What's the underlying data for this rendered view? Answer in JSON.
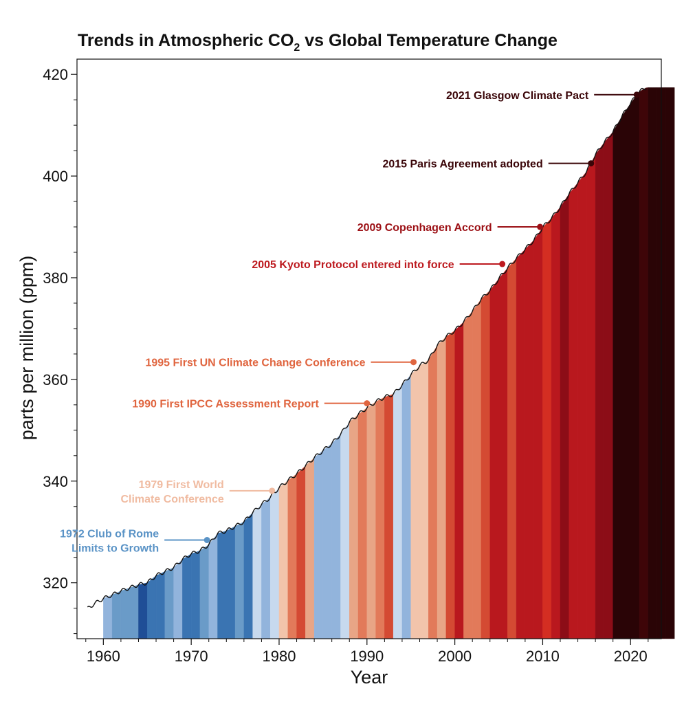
{
  "chart_data": {
    "type": "area",
    "title": "Trends in Atmospheric CO",
    "title_subscript": "2",
    "title_suffix": " vs Global Temperature Change",
    "xlabel": "Year",
    "ylabel": "parts per million (ppm)",
    "xlim": [
      1957.0,
      2023.5
    ],
    "ylim": [
      309,
      423
    ],
    "x_ticks": [
      1960,
      1970,
      1980,
      1990,
      2000,
      2010,
      2020
    ],
    "x_tick_labels": [
      "1960",
      "1970",
      "1980",
      "1990",
      "2000",
      "2010",
      "2020"
    ],
    "y_ticks": [
      320,
      340,
      360,
      380,
      400,
      420
    ],
    "y_tick_labels": [
      "320",
      "340",
      "360",
      "380",
      "400",
      "420"
    ],
    "grid": false,
    "co2_series": {
      "name": "CO2",
      "x": [
        1958.2,
        1959,
        1960,
        1961,
        1962,
        1963,
        1964,
        1965,
        1966,
        1967,
        1968,
        1969,
        1970,
        1971,
        1972,
        1973,
        1974,
        1975,
        1976,
        1977,
        1978,
        1979,
        1980,
        1981,
        1982,
        1983,
        1984,
        1985,
        1986,
        1987,
        1988,
        1989,
        1990,
        1991,
        1992,
        1993,
        1994,
        1995,
        1996,
        1997,
        1998,
        1999,
        2000,
        2001,
        2002,
        2003,
        2004,
        2005,
        2006,
        2007,
        2008,
        2009,
        2010,
        2011,
        2012,
        2013,
        2014,
        2015,
        2016,
        2017,
        2018,
        2019,
        2020,
        2021,
        2021.8
      ],
      "y": [
        314.9,
        315.9,
        316.9,
        317.6,
        318.4,
        319.0,
        319.6,
        320.0,
        321.4,
        322.2,
        323.0,
        324.6,
        325.7,
        326.3,
        327.5,
        329.7,
        330.2,
        331.1,
        332.0,
        333.8,
        335.4,
        336.8,
        338.7,
        340.1,
        341.4,
        343.0,
        344.6,
        346.0,
        347.4,
        349.2,
        351.6,
        353.1,
        354.4,
        355.6,
        356.5,
        357.1,
        358.9,
        360.9,
        362.7,
        363.8,
        366.7,
        368.4,
        369.6,
        371.3,
        373.4,
        375.8,
        377.5,
        379.8,
        381.9,
        383.8,
        385.6,
        387.4,
        389.9,
        391.7,
        393.9,
        396.5,
        398.7,
        400.9,
        404.2,
        406.6,
        408.7,
        411.7,
        414.3,
        416.6,
        417.4
      ]
    },
    "temperature_stripes": {
      "start_year": 1960,
      "colors": [
        "#92b4dc",
        "#6a9bc8",
        "#6a9bc8",
        "#6a9bc8",
        "#1f4e96",
        "#3a74b2",
        "#3a74b2",
        "#6a9bc8",
        "#92b4dc",
        "#3a74b2",
        "#3a74b2",
        "#6a9bc8",
        "#92b4dc",
        "#3a74b2",
        "#3a74b2",
        "#6a9bc8",
        "#3a74b2",
        "#c7d9ee",
        "#92b4dc",
        "#c7d9ee",
        "#f2c4ab",
        "#e27a5a",
        "#d44a33",
        "#e8a586",
        "#92b4dc",
        "#92b4dc",
        "#92b4dc",
        "#c7d9ee",
        "#e8a586",
        "#e27a5a",
        "#e8a586",
        "#e27a5a",
        "#d44a33",
        "#c7d9ee",
        "#92b4dc",
        "#f2c4ab",
        "#f2c4ab",
        "#e27a5a",
        "#e8a586",
        "#d44a33",
        "#b9181e",
        "#e27a5a",
        "#e27a5a",
        "#d44a33",
        "#b9181e",
        "#b9181e",
        "#d44a33",
        "#b9181e",
        "#b9181e",
        "#b9181e",
        "#d42e22",
        "#b9181e",
        "#8c0d17",
        "#b9181e",
        "#b9181e",
        "#b9181e",
        "#8c0d17",
        "#8c0d17",
        "#2a0406",
        "#2a0406",
        "#2a0406",
        "#3e0508",
        "#2a0406",
        "#2a0406",
        "#2a0406"
      ]
    },
    "annotations": [
      {
        "text": "2021 Glasgow Climate Pact",
        "color": "#3a0508",
        "point": [
          2020.7,
          416.0
        ],
        "anchor": "right"
      },
      {
        "text": "2015 Paris Agreement adopted",
        "color": "#3a0508",
        "point": [
          2015.5,
          402.5
        ],
        "anchor": "right"
      },
      {
        "text": "2009 Copenhagen Accord",
        "color": "#9c1015",
        "point": [
          2009.7,
          390.0
        ],
        "anchor": "right"
      },
      {
        "text": "2005 Kyoto Protocol entered into force",
        "color": "#bd1a1f",
        "point": [
          2005.4,
          382.7
        ],
        "anchor": "right"
      },
      {
        "text": "1995 First UN Climate Change Conference",
        "color": "#e0653f",
        "point": [
          1995.3,
          363.4
        ],
        "anchor": "right"
      },
      {
        "text": "1990 First IPCC Assessment Report",
        "color": "#e0653f",
        "point": [
          1990.0,
          355.3
        ],
        "anchor": "right"
      },
      {
        "text": "1979 First World",
        "text2": "Climate Conference",
        "color": "#f0bba1",
        "point": [
          1979.2,
          338.1
        ],
        "anchor": "right"
      },
      {
        "text": "1972 Club of Rome",
        "text2": "Limits to Growth",
        "color": "#5a93c6",
        "point": [
          1971.8,
          328.4
        ],
        "anchor": "right"
      }
    ]
  }
}
